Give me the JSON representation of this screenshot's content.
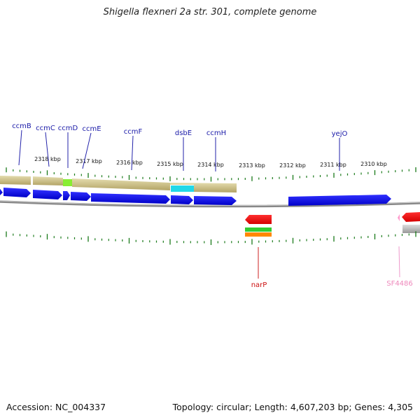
{
  "title": "Shigella flexneri 2a str. 301, complete genome",
  "footer": {
    "accession": "Accession: NC_004337",
    "summary": "Topology: circular; Length: 4,607,203 bp; Genes: 4,305"
  },
  "tick_labels": [
    "2318 kbp",
    "2317 kbp",
    "2316 kbp",
    "2315 kbp",
    "2314 kbp",
    "2313 kbp",
    "2312 kbp",
    "2311 kbp",
    "2310 kbp"
  ],
  "genes_top": [
    "ccmB",
    "ccmC",
    "ccmD",
    "ccmE",
    "ccmF",
    "dsbE",
    "ccmH",
    "yejO"
  ],
  "genes_bottom": [
    "narP",
    "SF4486"
  ],
  "colors": {
    "gene_label": "#1a1aa8",
    "narP_label": "#cc1111",
    "sf_label": "#ee88bb",
    "forward_gene": "#1414e6",
    "reverse_gene": "#e61414",
    "tick": "#1a7a1a",
    "backbone": "#808080",
    "annotation_band": "#c8b878"
  }
}
